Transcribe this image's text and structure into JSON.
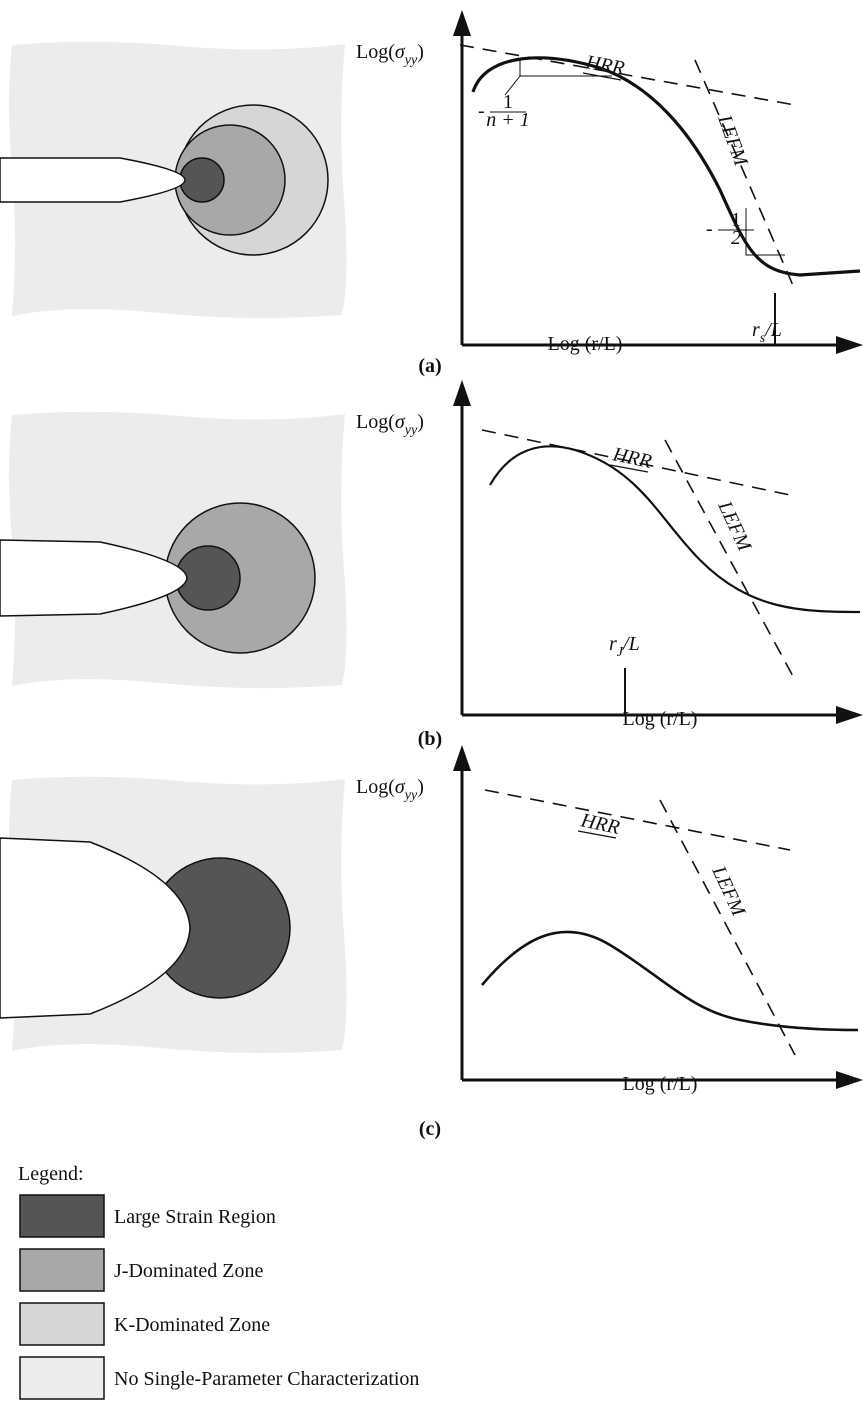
{
  "panels": [
    {
      "label": "(a)",
      "y_axis_label": {
        "prefix": "Log(",
        "symbol": "σ",
        "subscript": "yy",
        "suffix": ")"
      },
      "x_axis_label": "Log (r/L)",
      "hrr_label": "HRR",
      "lefm_label": "LEFM",
      "hrr_slope": {
        "sign": "-",
        "numerator": "1",
        "denominator": "n + 1"
      },
      "lefm_slope": {
        "sign": "-",
        "numerator": "1",
        "denominator": "2"
      },
      "scale_label": {
        "base": "r",
        "subscript": "s",
        "suffix": "/L"
      }
    },
    {
      "label": "(b)",
      "y_axis_label": {
        "prefix": "Log(",
        "symbol": "σ",
        "subscript": "yy",
        "suffix": ")"
      },
      "x_axis_label": "Log (r/L)",
      "hrr_label": "HRR",
      "lefm_label": "LEFM",
      "scale_label": {
        "base": "r",
        "subscript": "J",
        "suffix": "/L"
      }
    },
    {
      "label": "(c)",
      "y_axis_label": {
        "prefix": "Log(",
        "symbol": "σ",
        "subscript": "yy",
        "suffix": ")"
      },
      "x_axis_label": "Log (r/L)",
      "hrr_label": "HRR",
      "lefm_label": "LEFM"
    }
  ],
  "legend": {
    "title": "Legend:",
    "items": [
      "Large Strain Region",
      "J-Dominated Zone",
      "K-Dominated Zone",
      "No Single-Parameter Characterization"
    ]
  }
}
